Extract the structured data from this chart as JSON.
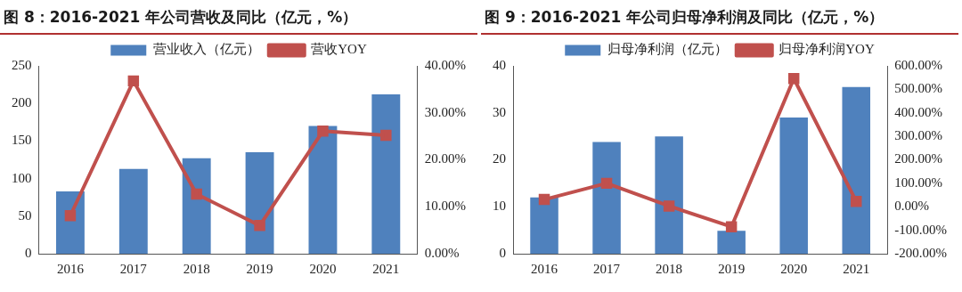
{
  "chart_data": [
    {
      "type": "bar",
      "title": "图 8：2016-2021 年公司营收及同比（亿元，%）",
      "categories": [
        "2016",
        "2017",
        "2018",
        "2019",
        "2020",
        "2021"
      ],
      "legend": "top",
      "grid": false,
      "ylim": [
        0,
        250
      ],
      "yticks": [
        0,
        50,
        100,
        150,
        200,
        250
      ],
      "y2lim": [
        0,
        40
      ],
      "y2ticks": [
        {
          "value": 0,
          "label": "0.00%"
        },
        {
          "value": 10,
          "label": "10.00%"
        },
        {
          "value": 20,
          "label": "20.00%"
        },
        {
          "value": 30,
          "label": "30.00%"
        },
        {
          "value": 40,
          "label": "40.00%"
        }
      ],
      "series": [
        {
          "name": "营业收入（亿元）",
          "color": "#4f81bd",
          "values": [
            83,
            113,
            127,
            135,
            170,
            212
          ]
        },
        {
          "name": "营收YOY",
          "type": "line",
          "axis": "y2",
          "marker": "square",
          "color": "#c0504d",
          "values": [
            8.1,
            36.8,
            12.7,
            6.0,
            26.1,
            25.2
          ]
        }
      ]
    },
    {
      "type": "bar",
      "title": "图 9：2016-2021 年公司归母净利润及同比（亿元，%）",
      "categories": [
        "2016",
        "2017",
        "2018",
        "2019",
        "2020",
        "2021"
      ],
      "legend": "top",
      "grid": false,
      "ylim": [
        0,
        40
      ],
      "yticks": [
        0,
        10,
        20,
        30,
        40
      ],
      "y2lim": [
        -200,
        600
      ],
      "y2ticks": [
        {
          "value": -200,
          "label": "-200.00%"
        },
        {
          "value": -100,
          "label": "-100.00%"
        },
        {
          "value": 0,
          "label": "0.00%"
        },
        {
          "value": 100,
          "label": "100.00%"
        },
        {
          "value": 200,
          "label": "200.00%"
        },
        {
          "value": 300,
          "label": "300.00%"
        },
        {
          "value": 400,
          "label": "400.00%"
        },
        {
          "value": 500,
          "label": "500.00%"
        },
        {
          "value": 600,
          "label": "600.00%"
        }
      ],
      "series": [
        {
          "name": "归母净利润（亿元）",
          "color": "#4f81bd",
          "values": [
            12,
            23.8,
            25,
            4.9,
            29,
            35.5
          ]
        },
        {
          "name": "归母净利润YOY",
          "type": "line",
          "axis": "y2",
          "marker": "square",
          "color": "#c0504d",
          "values": [
            31,
            100,
            3,
            -85,
            546,
            23
          ]
        }
      ]
    }
  ]
}
